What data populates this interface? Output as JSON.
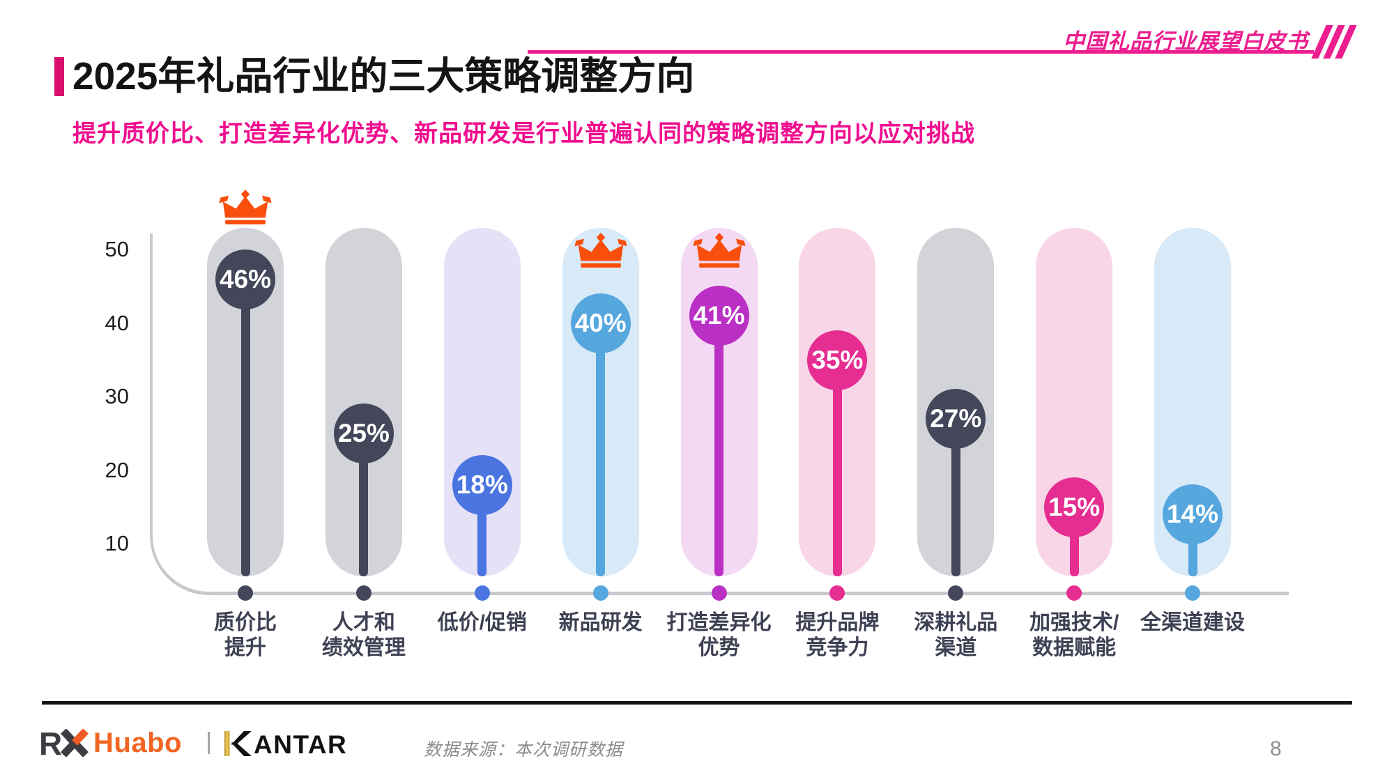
{
  "header": {
    "watermark": "中国礼品行业展望白皮书",
    "title": "2025年礼品行业的三大策略调整方向",
    "subtitle": "提升质价比、打造差异化优势、新品研发是行业普遍认同的策略调整方向以应对挑战",
    "accent_pink": "#EC1D8E",
    "title_bar_pink": "#D9106E",
    "subtitle_pink": "#F00D8E"
  },
  "chart_data": {
    "type": "bar",
    "style": "lollipop",
    "unit": "%",
    "title": "",
    "xlabel": "",
    "ylabel": "",
    "ylim": [
      0,
      52
    ],
    "yticks": [
      10,
      20,
      30,
      40,
      50
    ],
    "grid": false,
    "legend": "none",
    "categories": [
      [
        "质价比",
        "提升"
      ],
      [
        "人才和",
        "绩效管理"
      ],
      [
        "低价/促销"
      ],
      [
        "新品研发"
      ],
      [
        "打造差异化",
        "优势"
      ],
      [
        "提升品牌",
        "竞争力"
      ],
      [
        "深耕礼品",
        "渠道"
      ],
      [
        "加强技术/",
        "数据赋能"
      ],
      [
        "全渠道建设"
      ]
    ],
    "values": [
      46,
      25,
      18,
      40,
      41,
      35,
      27,
      15,
      14
    ],
    "crowned": [
      true,
      false,
      false,
      true,
      true,
      false,
      false,
      false,
      false
    ],
    "lollipop_colors": [
      "#44465A",
      "#44465A",
      "#4A74E0",
      "#56A7DE",
      "#BA2FC4",
      "#E62D91",
      "#44465A",
      "#E62D91",
      "#56A7DE"
    ],
    "pill_colors": [
      "#D3D4D9",
      "#D3D4D9",
      "#E5E1F6",
      "#D8E9F8",
      "#F3D9F4",
      "#F9D6E7",
      "#D3D4D9",
      "#F9D6E7",
      "#D8E9F8"
    ],
    "crown_color": "#F94E0C",
    "axis_color": "#C9C9CD"
  },
  "footer": {
    "logo_rx": "RX",
    "logo_huabo": "Huabo",
    "logo_kantar": "KANTAR",
    "source": "数据来源：本次调研数据",
    "page_number": "8"
  }
}
